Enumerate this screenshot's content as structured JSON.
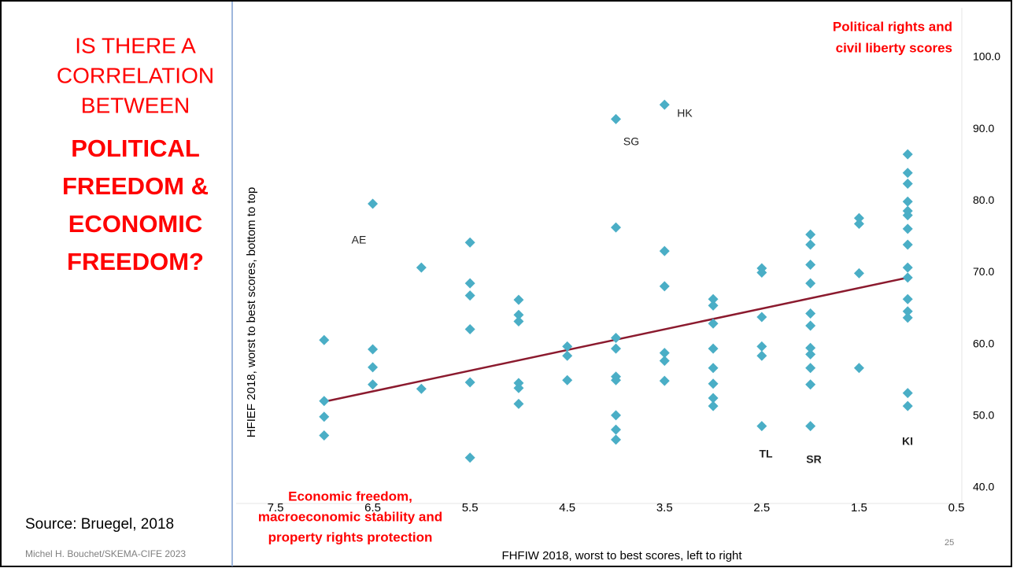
{
  "slide": {
    "title_lines": [
      "IS THERE A",
      "CORRELATION",
      "BETWEEN"
    ],
    "title_bold_lines": [
      "POLITICAL",
      "FREEDOM &",
      "ECONOMIC",
      "FREEDOM?"
    ],
    "source": "Source: Bruegel, 2018",
    "footer": "Michel H. Bouchet/SKEMA-CIFE 2023",
    "page_number": "25"
  },
  "chart_data": {
    "type": "scatter",
    "x_label": "FHFIW 2018, worst to best scores, left to right",
    "y_label": "HFIEF 2018, worst to best scores, bottom to top",
    "y_note": [
      "Political rights and",
      "civil liberty scores"
    ],
    "x_note": [
      "Economic freedom,",
      "macroeconomic stability and",
      "property rights protection"
    ],
    "color": "#4aaec6",
    "x": [
      7,
      7,
      7,
      7,
      6.5,
      6.5,
      6.5,
      6.5,
      6,
      6,
      5.5,
      5.5,
      5.5,
      5.5,
      5.5,
      5.5,
      5,
      5,
      5,
      5,
      5,
      5,
      4.5,
      4.5,
      4.5,
      4,
      4,
      4,
      4,
      4,
      4,
      4,
      4,
      4,
      3.5,
      3.5,
      3.5,
      3.5,
      3.5,
      3.5,
      3,
      3,
      3,
      3,
      3,
      3,
      3,
      3,
      2.5,
      2.5,
      2.5,
      2.5,
      2.5,
      2.5,
      2,
      2,
      2,
      2,
      2,
      2,
      2,
      2,
      2,
      2,
      2,
      1.5,
      1.5,
      1.5,
      1.5,
      1,
      1,
      1,
      1,
      1,
      1,
      1,
      1,
      1,
      1,
      1,
      1,
      1,
      1,
      1
    ],
    "values": [
      60.6,
      52.1,
      49.9,
      47.3,
      79.6,
      59.3,
      56.8,
      54.4,
      70.7,
      53.8,
      74.2,
      68.5,
      66.8,
      62.1,
      54.7,
      44.2,
      66.2,
      64.1,
      63.2,
      54.6,
      53.9,
      51.7,
      59.7,
      58.4,
      55.0,
      91.4,
      76.3,
      60.9,
      59.4,
      55.5,
      55.0,
      50.1,
      48.1,
      46.7,
      93.4,
      73.0,
      68.1,
      58.8,
      57.7,
      54.9,
      66.3,
      65.4,
      62.9,
      59.4,
      56.7,
      54.5,
      52.5,
      51.4,
      70.6,
      70.0,
      63.8,
      59.7,
      58.4,
      48.6,
      75.3,
      73.9,
      71.1,
      68.5,
      64.3,
      62.6,
      59.5,
      58.6,
      56.7,
      54.4,
      48.6,
      77.6,
      76.8,
      69.9,
      56.7,
      86.5,
      83.9,
      82.4,
      79.9,
      78.6,
      78.0,
      76.1,
      73.9,
      70.7,
      69.3,
      66.3,
      64.6,
      63.7,
      53.2,
      51.4
    ],
    "trendline": {
      "x": [
        7,
        1
      ],
      "values": [
        52.0,
        69.3
      ],
      "color": "#8b1a2e"
    },
    "annotations": [
      "AE",
      "SG",
      "HK",
      "TL",
      "SR",
      "KI"
    ],
    "xlim": [
      7.5,
      0.5
    ],
    "xticks": [
      7.5,
      6.5,
      5.5,
      4.5,
      3.5,
      2.5,
      1.5,
      0.5
    ],
    "ylim": [
      40,
      100
    ],
    "yticks": [
      {
        "value": 40,
        "label": "40.0"
      },
      {
        "value": 50,
        "label": "50.0"
      },
      {
        "value": 60,
        "label": "60.0"
      },
      {
        "value": 70,
        "label": "70.0"
      },
      {
        "value": 80,
        "label": "80.0"
      },
      {
        "value": 90,
        "label": "90.0"
      },
      {
        "value": 100,
        "label": "100.0"
      }
    ],
    "grid": false
  }
}
